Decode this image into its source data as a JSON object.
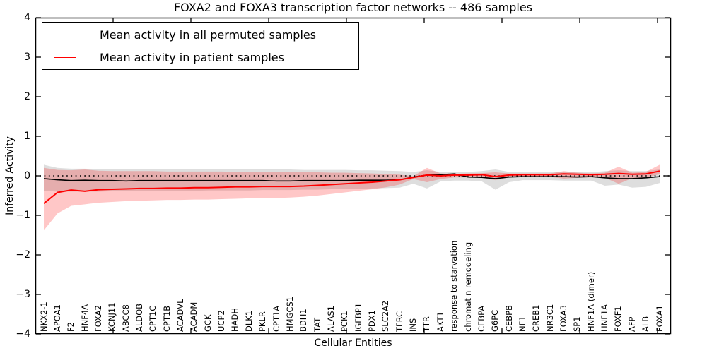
{
  "title": "FOXA2 and FOXA3 transcription factor networks -- 486 samples",
  "legend": {
    "items": [
      {
        "label": "Mean activity in all permuted samples",
        "color": "#000000"
      },
      {
        "label": "Mean activity in patient samples",
        "color": "#ff0000"
      }
    ]
  },
  "y_axis": {
    "label": "Inferred Activity",
    "ticks": [
      "4",
      "3",
      "2",
      "1",
      "0",
      "−1",
      "−2",
      "−3",
      "−4"
    ]
  },
  "x_axis": {
    "label": "Cellular Entities"
  },
  "chart_data": {
    "type": "line",
    "title": "FOXA2 and FOXA3 transcription factor networks -- 486 samples",
    "xlabel": "Cellular Entities",
    "ylabel": "Inferred Activity",
    "ylim": [
      -4,
      4
    ],
    "grid": false,
    "legend_position": "upper left",
    "categories": [
      "NKX2-1",
      "APOA1",
      "F2",
      "HNF4A",
      "FOXA2",
      "KCNJ11",
      "ABCC8",
      "ALDOB",
      "CPT1C",
      "CPT1B",
      "ACADVL",
      "ACADM",
      "GCK",
      "UCP2",
      "HADH",
      "DLK1",
      "PKLR",
      "CPT1A",
      "HMGCS1",
      "BDH1",
      "TAT",
      "ALAS1",
      "PCK1",
      "IGFBP1",
      "PDX1",
      "SLC2A2",
      "TFRC",
      "INS",
      "TTR",
      "AKT1",
      "response to starvation",
      "chromatin remodeling",
      "CEBPA",
      "G6PC",
      "CEBPB",
      "NF1",
      "CREB1",
      "NR3C1",
      "FOXA3",
      "SP1",
      "HNF1A (dimer)",
      "HNF1A",
      "FOXF1",
      "AFP",
      "ALB",
      "FOXA1"
    ],
    "zero_line": {
      "y": 0,
      "style": "dotted",
      "color": "#000000"
    },
    "series": [
      {
        "name": "Mean activity in all permuted samples",
        "color": "#000000",
        "band_color": "rgba(0,0,0,0.13)",
        "values": [
          -0.07,
          -0.1,
          -0.12,
          -0.11,
          -0.12,
          -0.12,
          -0.13,
          -0.12,
          -0.12,
          -0.12,
          -0.12,
          -0.12,
          -0.12,
          -0.12,
          -0.12,
          -0.12,
          -0.12,
          -0.13,
          -0.13,
          -0.12,
          -0.12,
          -0.12,
          -0.12,
          -0.11,
          -0.11,
          -0.11,
          -0.1,
          -0.03,
          0.02,
          0.03,
          0.05,
          -0.03,
          -0.04,
          -0.07,
          -0.03,
          -0.02,
          -0.02,
          -0.02,
          -0.02,
          -0.03,
          -0.02,
          -0.05,
          -0.07,
          -0.07,
          -0.05,
          -0.02
        ],
        "band_hi": [
          0.28,
          0.2,
          0.18,
          0.18,
          0.17,
          0.17,
          0.17,
          0.17,
          0.17,
          0.16,
          0.16,
          0.16,
          0.16,
          0.16,
          0.16,
          0.16,
          0.16,
          0.16,
          0.16,
          0.15,
          0.15,
          0.15,
          0.15,
          0.14,
          0.14,
          0.13,
          0.12,
          0.1,
          0.14,
          0.1,
          0.1,
          0.1,
          0.12,
          0.16,
          0.1,
          0.09,
          0.09,
          0.09,
          0.1,
          0.09,
          0.09,
          0.12,
          0.14,
          0.12,
          0.12,
          0.16
        ],
        "band_lo": [
          -0.38,
          -0.4,
          -0.4,
          -0.4,
          -0.4,
          -0.39,
          -0.39,
          -0.39,
          -0.38,
          -0.38,
          -0.38,
          -0.38,
          -0.37,
          -0.37,
          -0.37,
          -0.37,
          -0.36,
          -0.36,
          -0.36,
          -0.35,
          -0.35,
          -0.34,
          -0.34,
          -0.33,
          -0.32,
          -0.31,
          -0.3,
          -0.2,
          -0.32,
          -0.14,
          -0.12,
          -0.12,
          -0.14,
          -0.35,
          -0.16,
          -0.11,
          -0.11,
          -0.11,
          -0.12,
          -0.12,
          -0.12,
          -0.25,
          -0.22,
          -0.3,
          -0.28,
          -0.18
        ]
      },
      {
        "name": "Mean activity in patient samples",
        "color": "#ff0000",
        "band_color": "rgba(255,0,0,0.22)",
        "values": [
          -0.7,
          -0.42,
          -0.36,
          -0.39,
          -0.35,
          -0.34,
          -0.33,
          -0.32,
          -0.32,
          -0.31,
          -0.31,
          -0.3,
          -0.3,
          -0.29,
          -0.28,
          -0.28,
          -0.27,
          -0.27,
          -0.27,
          -0.26,
          -0.24,
          -0.22,
          -0.2,
          -0.18,
          -0.16,
          -0.13,
          -0.1,
          -0.04,
          0.02,
          0.0,
          0.02,
          0.02,
          0.03,
          -0.02,
          0.02,
          0.03,
          0.03,
          0.03,
          0.05,
          0.04,
          0.03,
          0.04,
          0.06,
          0.04,
          0.05,
          0.12
        ],
        "band_hi": [
          0.2,
          0.15,
          0.14,
          0.16,
          0.13,
          0.12,
          0.12,
          0.12,
          0.12,
          0.11,
          0.11,
          0.11,
          0.11,
          0.11,
          0.1,
          0.1,
          0.1,
          0.1,
          0.1,
          0.09,
          0.09,
          0.08,
          0.08,
          0.07,
          0.06,
          0.05,
          0.03,
          -0.01,
          0.2,
          0.06,
          0.05,
          0.06,
          0.07,
          0.09,
          0.06,
          0.06,
          0.06,
          0.06,
          0.12,
          0.08,
          0.06,
          0.08,
          0.23,
          0.08,
          0.1,
          0.28
        ],
        "band_lo": [
          -1.38,
          -0.95,
          -0.76,
          -0.72,
          -0.68,
          -0.66,
          -0.64,
          -0.63,
          -0.62,
          -0.61,
          -0.61,
          -0.6,
          -0.6,
          -0.59,
          -0.58,
          -0.57,
          -0.57,
          -0.56,
          -0.55,
          -0.53,
          -0.5,
          -0.46,
          -0.42,
          -0.38,
          -0.34,
          -0.29,
          -0.22,
          -0.08,
          -0.16,
          -0.08,
          -0.04,
          -0.04,
          -0.05,
          -0.11,
          -0.04,
          -0.03,
          -0.03,
          -0.03,
          -0.07,
          -0.05,
          -0.04,
          -0.05,
          -0.2,
          -0.06,
          -0.04,
          0.04
        ]
      }
    ]
  }
}
